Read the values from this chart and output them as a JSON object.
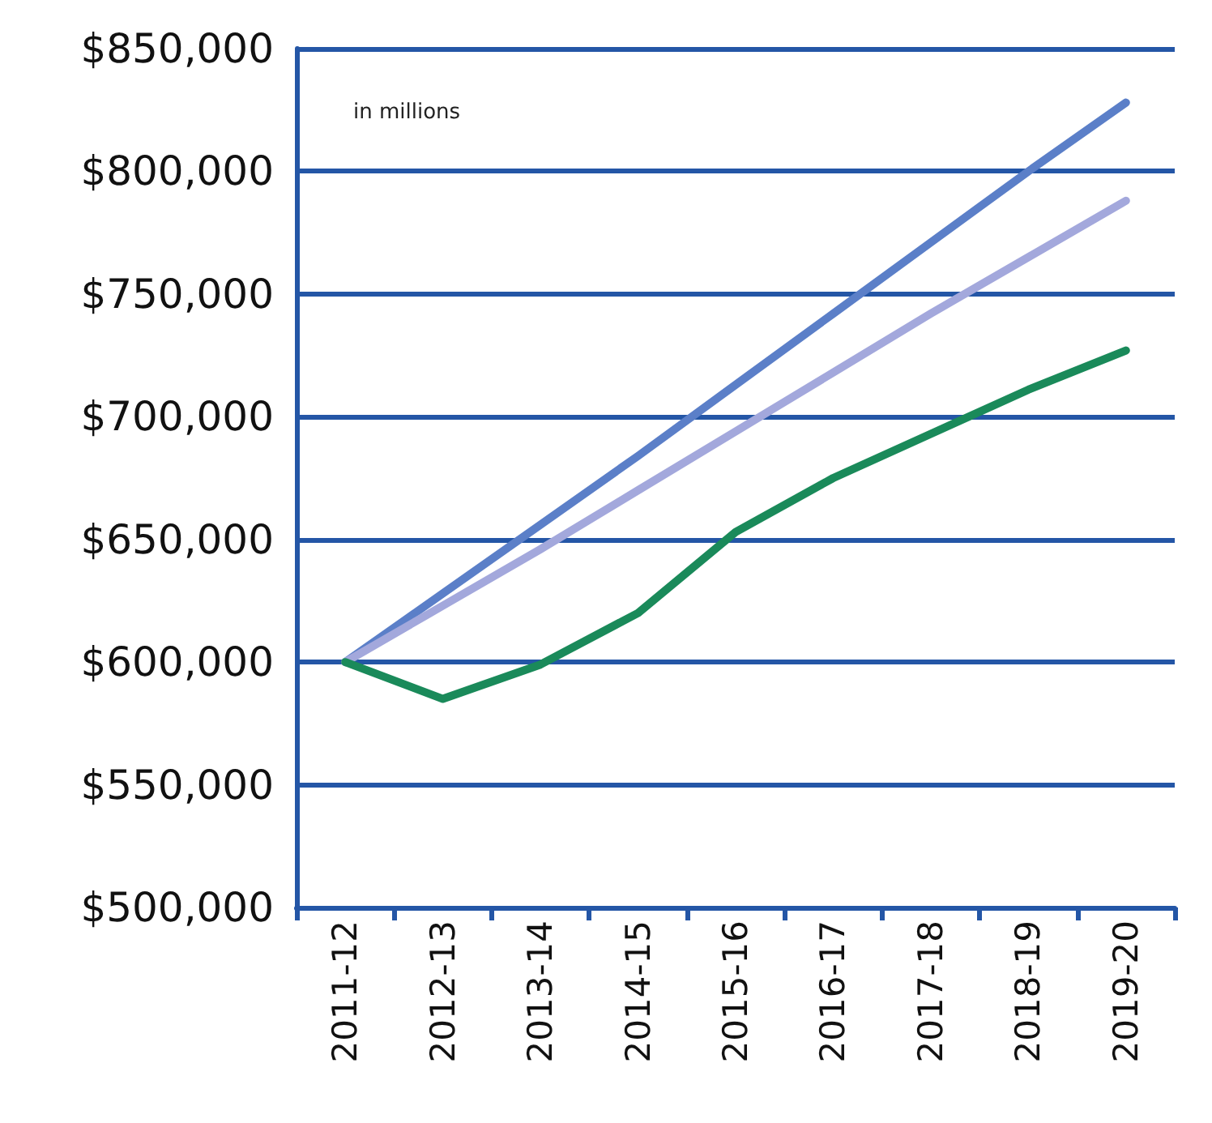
{
  "chart_data": {
    "type": "line",
    "categories": [
      "2011-12",
      "2012-13",
      "2013-14",
      "2014-15",
      "2015-16",
      "2016-17",
      "2017-18",
      "2018-19",
      "2019-20"
    ],
    "series": [
      {
        "color": "#5b7fc8",
        "values": [
          600000,
          628000,
          656000,
          684000,
          713000,
          742000,
          771000,
          800000,
          828000
        ]
      },
      {
        "color": "#a3a8dc",
        "values": [
          600000,
          623000,
          646000,
          670000,
          694000,
          718000,
          742000,
          765000,
          788000
        ]
      },
      {
        "color": "#1a8a5a",
        "values": [
          600000,
          585000,
          599000,
          620000,
          653000,
          675000,
          693000,
          711000,
          727000
        ]
      }
    ],
    "ylim": [
      500000,
      850000
    ],
    "yticks": [
      {
        "value": 500000,
        "label": "$500,000"
      },
      {
        "value": 550000,
        "label": "$550,000"
      },
      {
        "value": 600000,
        "label": "$600,000"
      },
      {
        "value": 650000,
        "label": "$650,000"
      },
      {
        "value": 700000,
        "label": "$700,000"
      },
      {
        "value": 750000,
        "label": "$750,000"
      },
      {
        "value": 800000,
        "label": "$800,000"
      },
      {
        "value": 850000,
        "label": "$850,000"
      }
    ],
    "annotations": [
      "in millions"
    ],
    "grid": "y",
    "marker": "none",
    "line_style": "solid"
  }
}
